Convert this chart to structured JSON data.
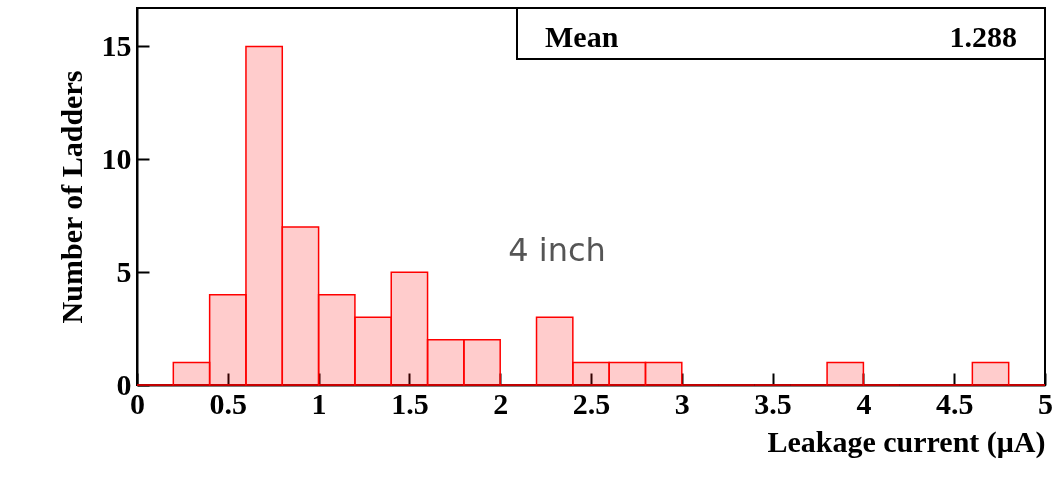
{
  "chart_data": {
    "type": "histogram",
    "xlabel": "Leakage current (μA)",
    "ylabel": "Number of Ladders",
    "bins": [
      0,
      0.2,
      0.4,
      0.6,
      0.8,
      1.0,
      1.2,
      1.4,
      1.6,
      1.8,
      2.0,
      2.2,
      2.4,
      2.6,
      2.8,
      3.0,
      3.2,
      3.4,
      3.6,
      3.8,
      4.0,
      4.2,
      4.4,
      4.6,
      4.8,
      5.0
    ],
    "values": [
      0,
      1,
      4,
      15,
      7,
      4,
      3,
      5,
      2,
      2,
      0,
      3,
      1,
      1,
      1,
      0,
      0,
      0,
      0,
      1,
      0,
      0,
      0,
      1,
      0
    ],
    "color": "#ff0000",
    "xlim": [
      0,
      5
    ],
    "ylim": [
      0,
      16.7
    ],
    "xticks": [
      0,
      0.5,
      1,
      1.5,
      2,
      2.5,
      3,
      3.5,
      4,
      4.5,
      5
    ],
    "yticks": [
      0,
      5,
      10,
      15
    ],
    "annotations": [
      "Mean",
      "1.288",
      "4 inch"
    ]
  }
}
